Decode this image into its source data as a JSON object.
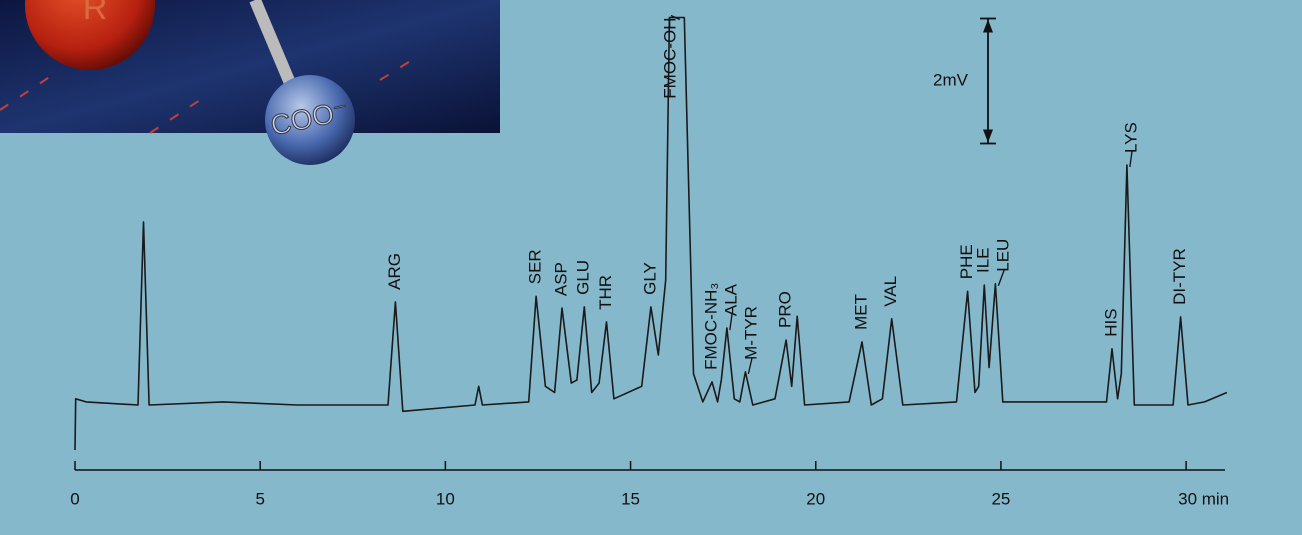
{
  "chart_data": {
    "type": "line",
    "line_color": "#1a1a1a",
    "x": [
      0,
      0.02,
      0.3,
      1.7,
      1.85,
      2.0,
      4,
      6,
      8.45,
      8.65,
      8.85,
      10.8,
      10.9,
      11,
      12.25,
      12.45,
      12.7,
      12.95,
      13.15,
      13.4,
      13.55,
      13.75,
      13.95,
      14.15,
      14.35,
      14.55,
      15.3,
      15.55,
      15.75,
      15.95,
      16.05,
      16.45,
      16.7,
      16.95,
      17.2,
      17.35,
      17.45,
      17.6,
      17.8,
      17.95,
      18.1,
      18.3,
      18.9,
      19.2,
      19.35,
      19.5,
      19.7,
      20.9,
      21.25,
      21.5,
      21.8,
      22.05,
      22.35,
      23.8,
      24.1,
      24.3,
      24.4,
      24.55,
      24.68,
      24.85,
      25.05,
      27.5,
      27.85,
      28.0,
      28.15,
      28.25,
      28.4,
      28.6,
      29.65,
      29.85,
      30.05,
      30.5,
      31.1
    ],
    "values": [
      -0.72,
      0.1,
      0.05,
      0,
      2.93,
      0,
      0.05,
      0,
      0,
      1.65,
      -0.1,
      0,
      0.3,
      0,
      0.05,
      1.74,
      0.3,
      0.2,
      1.55,
      0.35,
      0.4,
      1.57,
      0.2,
      0.35,
      1.33,
      0.1,
      0.3,
      1.57,
      0.8,
      2.0,
      6.2,
      6.2,
      0.5,
      0.05,
      0.37,
      0.05,
      0.4,
      1.23,
      0.1,
      0.05,
      0.53,
      0,
      0.1,
      1.04,
      0.3,
      1.42,
      0,
      0.05,
      1.01,
      0,
      0.1,
      1.38,
      0,
      0.05,
      1.82,
      0.2,
      0.3,
      1.92,
      0.6,
      1.94,
      0.05,
      0.05,
      0.05,
      0.9,
      0.1,
      0.5,
      3.84,
      0,
      0,
      1.41,
      0,
      0.05,
      0.2
    ],
    "xlim": [
      0,
      31.05
    ],
    "ylim": [
      -1,
      6.2
    ],
    "xticks": [
      0,
      5,
      10,
      15,
      20,
      25,
      {
        "value": 30,
        "label": "30 min"
      }
    ],
    "annotations": [
      {
        "text": "ARG",
        "x": 8.65,
        "y": 1.65
      },
      {
        "text": "SER",
        "x": 12.45,
        "y": 1.74
      },
      {
        "text": "ASP",
        "x": 13.15,
        "y": 1.55
      },
      {
        "text": "GLU",
        "x": 13.75,
        "y": 1.57
      },
      {
        "text": "THR",
        "x": 14.35,
        "y": 1.33
      },
      {
        "text": "GLY",
        "x": 15.55,
        "y": 1.57
      },
      {
        "text": "FMOC-OH",
        "x": 16.25,
        "y": 6.2
      },
      {
        "text": "FMOC-NH₃",
        "x": 17.2,
        "y": 0.37
      },
      {
        "text": "ALA",
        "x": 17.6,
        "y": 1.23
      },
      {
        "text": "M-TYR",
        "x": 18.1,
        "y": 0.53
      },
      {
        "text": "PRO",
        "x": 19.2,
        "y": 1.04
      },
      {
        "text": "MET",
        "x": 21.25,
        "y": 1.01
      },
      {
        "text": "VAL",
        "x": 22.05,
        "y": 1.38
      },
      {
        "text": "PHE",
        "x": 24.1,
        "y": 1.82
      },
      {
        "text": "ILE",
        "x": 24.55,
        "y": 1.92
      },
      {
        "text": "LEU",
        "x": 24.85,
        "y": 1.94
      },
      {
        "text": "HIS",
        "x": 28.0,
        "y": 0.9
      },
      {
        "text": "LYS",
        "x": 28.4,
        "y": 3.84
      },
      {
        "text": "DI-TYR",
        "x": 29.85,
        "y": 1.41
      }
    ],
    "scale_bar": {
      "label": "2mV",
      "value": 2
    }
  },
  "inset": {
    "labels": [
      "R",
      "COO⁻"
    ]
  }
}
